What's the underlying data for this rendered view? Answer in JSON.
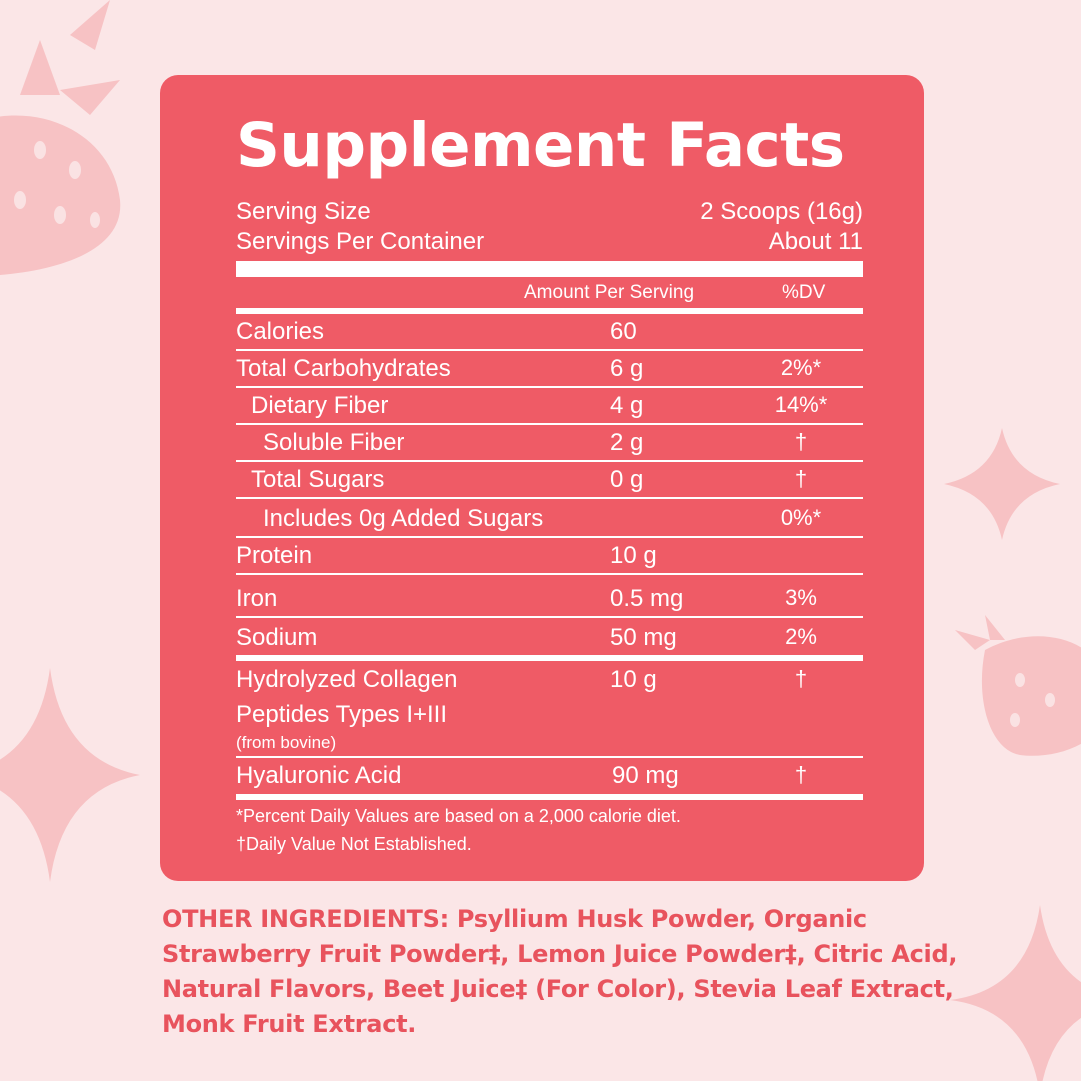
{
  "panel": {
    "title": "Supplement Facts",
    "serving_size_label": "Serving Size",
    "serving_size_value": "2 Scoops (16g)",
    "servings_label": "Servings Per Container",
    "servings_value": "About 11",
    "amount_header": "Amount Per Serving",
    "dv_header": "%DV",
    "rows": [
      {
        "label": "Calories",
        "amount": "60",
        "dv": ""
      },
      {
        "label": "Total Carbohydrates",
        "amount": "6 g",
        "dv": "2%*"
      },
      {
        "label": "Dietary Fiber",
        "amount": "4 g",
        "dv": "14%*"
      },
      {
        "label": "Soluble Fiber",
        "amount": "2 g",
        "dv": "†"
      },
      {
        "label": "Total Sugars",
        "amount": "0 g",
        "dv": "†"
      },
      {
        "label": "Includes 0g Added Sugars",
        "amount": "",
        "dv": "0%*"
      },
      {
        "label": "Protein",
        "amount": "10 g",
        "dv": ""
      },
      {
        "label": "Iron",
        "amount": "0.5 mg",
        "dv": "3%"
      },
      {
        "label": "Sodium",
        "amount": "50 mg",
        "dv": "2%"
      }
    ],
    "collagen": {
      "line1": "Hydrolyzed Collagen",
      "line2": "Peptides Types I+III",
      "note": "(from bovine)",
      "amount": "10 g",
      "dv": "†"
    },
    "hyaluronic": {
      "label": "Hyaluronic Acid",
      "amount": "90 mg",
      "dv": "†"
    },
    "footnote1": "*Percent Daily Values are based on a 2,000 calorie diet.",
    "footnote2": "†Daily Value Not Established."
  },
  "ingredients": {
    "line1": "OTHER INGREDIENTS: Psyllium Husk Powder, Organic",
    "line2": "Strawberry Fruit Powder‡, Lemon Juice Powder‡, Citric Acid,",
    "line3": "Natural Flavors, Beet Juice‡ (For Color), Stevia Leaf Extract,",
    "line4": "Monk Fruit Extract."
  },
  "colors": {
    "background": "#fbe6e7",
    "panel": "#ef5b66",
    "decoration": "#f7c2c4",
    "ingredients_text": "#e8535d"
  }
}
